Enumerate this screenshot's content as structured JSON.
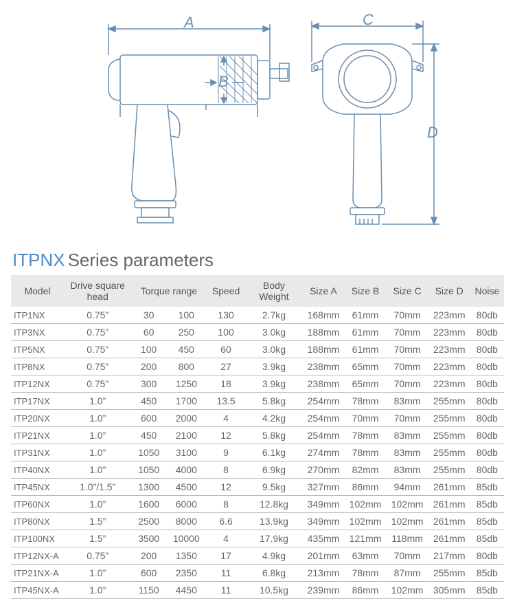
{
  "diagram": {
    "stroke": "#6a8fb0",
    "stroke_width": 1.5,
    "labels": [
      "A",
      "B",
      "C",
      "D"
    ],
    "label_color": "#6a8fb0",
    "label_fontsize": 22
  },
  "title": {
    "accent": "ITPNX",
    "rest": "Series parameters"
  },
  "table": {
    "header_bg": "#e9e9e9",
    "border_color": "#bbbbbb",
    "columns": [
      "Model",
      "Drive square head",
      "Torque range",
      "Speed",
      "Body Weight",
      "Size A",
      "Size B",
      "Size C",
      "Size D",
      "Noise"
    ],
    "rows": [
      {
        "model": "ITP1NX",
        "drive": "0.75”",
        "tq1": "30",
        "tq2": "100",
        "speed": "130",
        "weight": "2.7kg",
        "a": "168mm",
        "b": "61mm",
        "c": "70mm",
        "d": "223mm",
        "noise": "80db"
      },
      {
        "model": "ITP3NX",
        "drive": "0.75”",
        "tq1": "60",
        "tq2": "250",
        "speed": "100",
        "weight": "3.0kg",
        "a": "188mm",
        "b": "61mm",
        "c": "70mm",
        "d": "223mm",
        "noise": "80db"
      },
      {
        "model": "ITP5NX",
        "drive": "0.75”",
        "tq1": "100",
        "tq2": "450",
        "speed": "60",
        "weight": "3.0kg",
        "a": "188mm",
        "b": "61mm",
        "c": "70mm",
        "d": "223mm",
        "noise": "80db"
      },
      {
        "model": "ITP8NX",
        "drive": "0.75”",
        "tq1": "200",
        "tq2": "800",
        "speed": "27",
        "weight": "3.9kg",
        "a": "238mm",
        "b": "65mm",
        "c": "70mm",
        "d": "223mm",
        "noise": "80db"
      },
      {
        "model": "ITP12NX",
        "drive": "0.75”",
        "tq1": "300",
        "tq2": "1250",
        "speed": "18",
        "weight": "3.9kg",
        "a": "238mm",
        "b": "65mm",
        "c": "70mm",
        "d": "223mm",
        "noise": "80db"
      },
      {
        "model": "ITP17NX",
        "drive": "1.0”",
        "tq1": "450",
        "tq2": "1700",
        "speed": "13.5",
        "weight": "5.8kg",
        "a": "254mm",
        "b": "78mm",
        "c": "83mm",
        "d": "255mm",
        "noise": "80db"
      },
      {
        "model": "ITP20NX",
        "drive": "1.0”",
        "tq1": "600",
        "tq2": "2000",
        "speed": "4",
        "weight": "4.2kg",
        "a": "254mm",
        "b": "70mm",
        "c": "70mm",
        "d": "255mm",
        "noise": "80db"
      },
      {
        "model": "ITP21NX",
        "drive": "1.0”",
        "tq1": "450",
        "tq2": "2100",
        "speed": "12",
        "weight": "5.8kg",
        "a": "254mm",
        "b": "78mm",
        "c": "83mm",
        "d": "255mm",
        "noise": "80db"
      },
      {
        "model": "ITP31NX",
        "drive": "1.0”",
        "tq1": "1050",
        "tq2": "3100",
        "speed": "9",
        "weight": "6.1kg",
        "a": "274mm",
        "b": "78mm",
        "c": "83mm",
        "d": "255mm",
        "noise": "80db"
      },
      {
        "model": "ITP40NX",
        "drive": "1.0”",
        "tq1": "1050",
        "tq2": "4000",
        "speed": "8",
        "weight": "6.9kg",
        "a": "270mm",
        "b": "82mm",
        "c": "83mm",
        "d": "255mm",
        "noise": "80db"
      },
      {
        "model": "ITP45NX",
        "drive": "1.0”/1.5”",
        "tq1": "1300",
        "tq2": "4500",
        "speed": "12",
        "weight": "9.5kg",
        "a": "327mm",
        "b": "86mm",
        "c": "94mm",
        "d": "261mm",
        "noise": "85db"
      },
      {
        "model": "ITP60NX",
        "drive": "1.0”",
        "tq1": "1600",
        "tq2": "6000",
        "speed": "8",
        "weight": "12.8kg",
        "a": "349mm",
        "b": "102mm",
        "c": "102mm",
        "d": "261mm",
        "noise": "85db"
      },
      {
        "model": "ITP80NX",
        "drive": "1.5”",
        "tq1": "2500",
        "tq2": "8000",
        "speed": "6.6",
        "weight": "13.9kg",
        "a": "349mm",
        "b": "102mm",
        "c": "102mm",
        "d": "261mm",
        "noise": "85db"
      },
      {
        "model": "ITP100NX",
        "drive": "1.5”",
        "tq1": "3500",
        "tq2": "10000",
        "speed": "4",
        "weight": "17.9kg",
        "a": "435mm",
        "b": "121mm",
        "c": "118mm",
        "d": "261mm",
        "noise": "85db"
      },
      {
        "model": "ITP12NX-A",
        "drive": "0.75”",
        "tq1": "200",
        "tq2": "1350",
        "speed": "17",
        "weight": "4.9kg",
        "a": "201mm",
        "b": "63mm",
        "c": "70mm",
        "d": "217mm",
        "noise": "80db"
      },
      {
        "model": "ITP21NX-A",
        "drive": "1.0”",
        "tq1": "600",
        "tq2": "2350",
        "speed": "11",
        "weight": "6.8kg",
        "a": "213mm",
        "b": "78mm",
        "c": "87mm",
        "d": "255mm",
        "noise": "85db"
      },
      {
        "model": "ITP45NX-A",
        "drive": "1.0”",
        "tq1": "1150",
        "tq2": "4450",
        "speed": "11",
        "weight": "10.5kg",
        "a": "239mm",
        "b": "86mm",
        "c": "102mm",
        "d": "305mm",
        "noise": "85db"
      }
    ]
  }
}
